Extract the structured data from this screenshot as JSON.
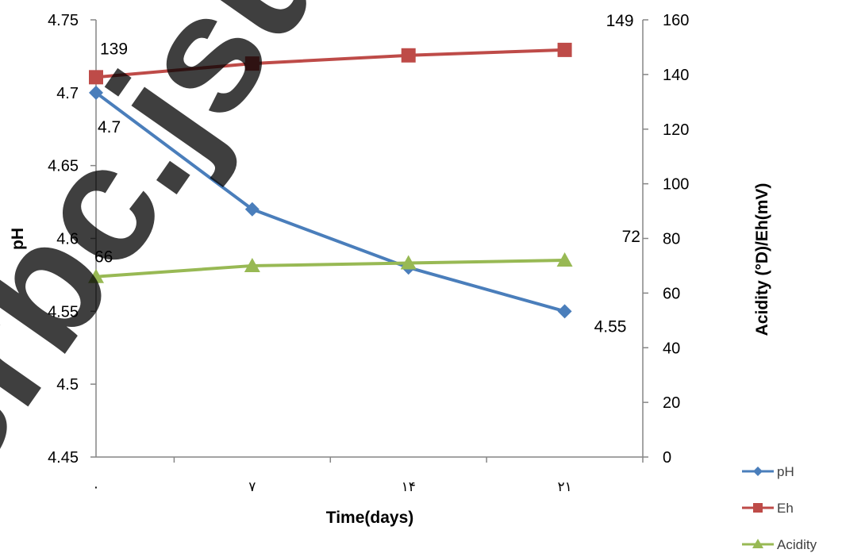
{
  "chart_data": {
    "type": "line",
    "categories": [
      "۰",
      "۷",
      "۱۴",
      "۲۱"
    ],
    "xlabel": "Time(days)",
    "ylabel": "pH",
    "y2label": "Acidity (°D)/Eh(mV)",
    "ylim": [
      4.45,
      4.75
    ],
    "y2lim": [
      0,
      160
    ],
    "yticks": [
      "4.45",
      "4.5",
      "4.55",
      "4.6",
      "4.65",
      "4.7",
      "4.75"
    ],
    "y2ticks": [
      "0",
      "20",
      "40",
      "60",
      "80",
      "100",
      "120",
      "140",
      "160"
    ],
    "grid": false,
    "legend_position": "bottom-right",
    "series": [
      {
        "name": "pH",
        "axis": "left",
        "values": [
          4.7,
          4.62,
          4.58,
          4.55
        ],
        "color": "#4a7ebb",
        "marker": "diamond",
        "labels": [
          {
            "index": 0,
            "text": "4.7"
          },
          {
            "index": 3,
            "text": "4.55"
          }
        ]
      },
      {
        "name": "Eh",
        "axis": "right",
        "values": [
          139,
          144,
          147,
          149
        ],
        "color": "#be4b48",
        "marker": "square",
        "labels": [
          {
            "index": 0,
            "text": "139"
          },
          {
            "index": 3,
            "text": "149"
          }
        ]
      },
      {
        "name": "Acidity",
        "axis": "right",
        "values": [
          66,
          70,
          71,
          72
        ],
        "color": "#98b954",
        "marker": "triangle",
        "labels": [
          {
            "index": 0,
            "text": "66"
          },
          {
            "index": 3,
            "text": "72"
          }
        ]
      }
    ]
  },
  "watermark": {
    "text": "srbc.jsutn.ir"
  }
}
